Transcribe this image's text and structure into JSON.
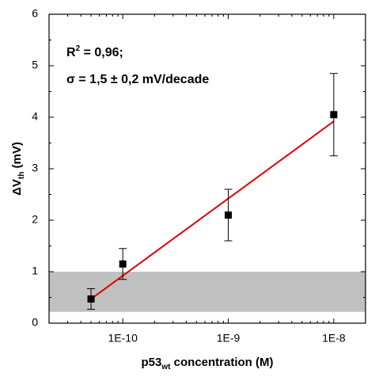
{
  "chart_data": {
    "type": "scatter",
    "x_label": [
      "p53",
      "wt",
      " concentration  (M)"
    ],
    "y_label": [
      "ΔV",
      "th",
      " (mV)"
    ],
    "annotations": [
      [
        "R",
        "2",
        " = 0,96;"
      ],
      [
        "σ = 1,5 ± 0,2 mV/decade"
      ]
    ],
    "log_x": true,
    "xlim": [
      2e-11,
      2e-08
    ],
    "ylim": [
      0,
      6
    ],
    "xticks": [
      {
        "value": 1e-10,
        "label": "1E-10"
      },
      {
        "value": 1e-09,
        "label": "1E-9"
      },
      {
        "value": 1e-08,
        "label": "1E-8"
      }
    ],
    "xminorticks": [
      3e-11,
      4e-11,
      5e-11,
      6e-11,
      7e-11,
      8e-11,
      9e-11,
      2e-10,
      3e-10,
      4e-10,
      5e-10,
      6e-10,
      7e-10,
      8e-10,
      9e-10,
      2e-09,
      3e-09,
      4e-09,
      5e-09,
      6e-09,
      7e-09,
      8e-09,
      9e-09
    ],
    "yticks": [
      0,
      1,
      2,
      3,
      4,
      5,
      6
    ],
    "yminorticks": [
      0.5,
      1.5,
      2.5,
      3.5,
      4.5,
      5.5
    ],
    "shaded_band": [
      0.22,
      1
    ],
    "shaded_band_color": "#c0c0c0",
    "series": [
      {
        "type": "scatter",
        "color": "#000000",
        "x": [
          5e-11,
          1e-10,
          1e-09,
          1e-08
        ],
        "values": [
          0.47,
          1.15,
          2.1,
          4.05
        ],
        "errors": [
          0.2,
          0.3,
          0.5,
          0.8
        ]
      },
      {
        "type": "line",
        "color": "#e00000",
        "x": [
          5e-11,
          1e-08
        ],
        "values": [
          0.47,
          3.92
        ]
      }
    ]
  }
}
